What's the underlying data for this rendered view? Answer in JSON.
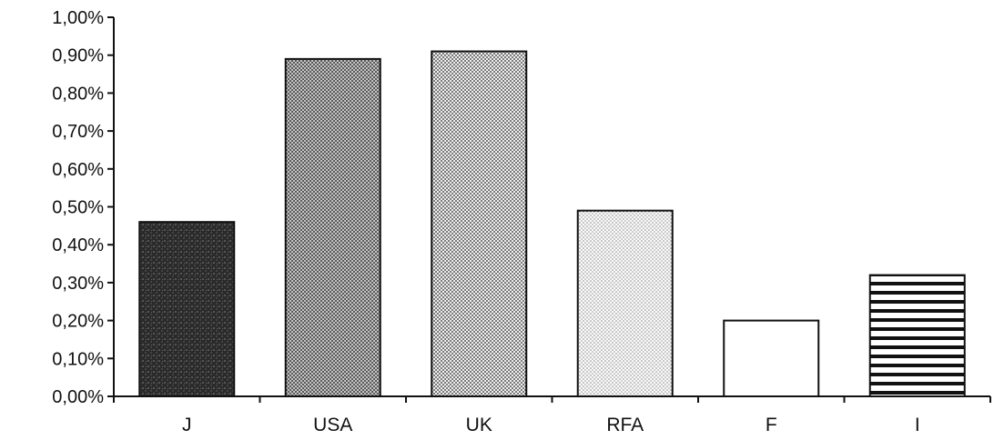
{
  "chart_data": {
    "type": "bar",
    "categories": [
      "J",
      "USA",
      "UK",
      "RFA",
      "F",
      "I"
    ],
    "values": [
      0.46,
      0.89,
      0.91,
      0.49,
      0.2,
      0.32
    ],
    "title": "",
    "xlabel": "",
    "ylabel": "",
    "ylim": [
      0,
      1.0
    ],
    "yticks": [
      "0,00%",
      "0,10%",
      "0,20%",
      "0,30%",
      "0,40%",
      "0,50%",
      "0,60%",
      "0,70%",
      "0,80%",
      "0,90%",
      "1,00%"
    ],
    "ytick_values": [
      0,
      0.1,
      0.2,
      0.3,
      0.4,
      0.5,
      0.6,
      0.7,
      0.8,
      0.9,
      1.0
    ],
    "grid": false,
    "legend": "none",
    "bar_fills": [
      "dark-noise",
      "dark-dots",
      "medium-dots",
      "light-dots",
      "white",
      "horizontal-stripes"
    ]
  }
}
